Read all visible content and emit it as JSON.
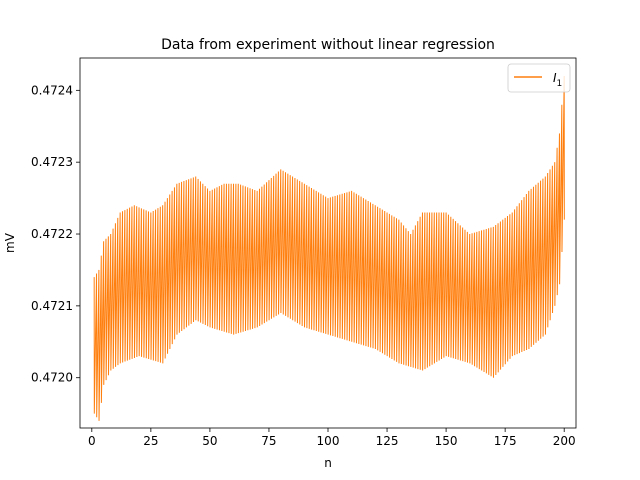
{
  "chart_data": {
    "type": "line",
    "title": "Data from experiment without linear regression",
    "xlabel": "n",
    "ylabel": "mV",
    "xlim": [
      -5,
      205
    ],
    "ylim": [
      0.47193,
      0.472445
    ],
    "x_ticks": [
      0,
      25,
      50,
      75,
      100,
      125,
      150,
      175,
      200
    ],
    "x_tick_labels": [
      "0",
      "25",
      "50",
      "75",
      "100",
      "125",
      "150",
      "175",
      "200"
    ],
    "y_ticks": [
      0.472,
      0.4721,
      0.4722,
      0.4723,
      0.4724
    ],
    "y_tick_labels": [
      "0.4720",
      "0.4721",
      "0.4722",
      "0.4723",
      "0.4724"
    ],
    "grid": false,
    "legend_position": "top-right",
    "series": [
      {
        "name": "$I_1$",
        "legend_label": "I",
        "legend_subscript": "1",
        "color": "#ff7f0e",
        "x_range": [
          1,
          200
        ],
        "upper_envelope": [
          [
            1,
            0.47214
          ],
          [
            3,
            0.47215
          ],
          [
            5,
            0.47219
          ],
          [
            8,
            0.4722
          ],
          [
            12,
            0.47223
          ],
          [
            18,
            0.47224
          ],
          [
            25,
            0.47223
          ],
          [
            30,
            0.47224
          ],
          [
            36,
            0.47227
          ],
          [
            44,
            0.47228
          ],
          [
            50,
            0.47226
          ],
          [
            56,
            0.47227
          ],
          [
            62,
            0.47227
          ],
          [
            70,
            0.47226
          ],
          [
            80,
            0.47229
          ],
          [
            90,
            0.47227
          ],
          [
            100,
            0.47225
          ],
          [
            110,
            0.47226
          ],
          [
            120,
            0.47224
          ],
          [
            130,
            0.47222
          ],
          [
            135,
            0.4722
          ],
          [
            140,
            0.47223
          ],
          [
            150,
            0.47223
          ],
          [
            160,
            0.4722
          ],
          [
            170,
            0.47221
          ],
          [
            178,
            0.47223
          ],
          [
            185,
            0.47226
          ],
          [
            192,
            0.47228
          ],
          [
            196,
            0.4723
          ],
          [
            198,
            0.47234
          ],
          [
            200,
            0.47242
          ]
        ],
        "lower_envelope": [
          [
            1,
            0.47195
          ],
          [
            3,
            0.47194
          ],
          [
            5,
            0.47199
          ],
          [
            8,
            0.47201
          ],
          [
            12,
            0.47202
          ],
          [
            20,
            0.47203
          ],
          [
            30,
            0.47202
          ],
          [
            36,
            0.47206
          ],
          [
            44,
            0.47208
          ],
          [
            50,
            0.47207
          ],
          [
            60,
            0.47206
          ],
          [
            70,
            0.47207
          ],
          [
            80,
            0.47209
          ],
          [
            90,
            0.47207
          ],
          [
            100,
            0.47206
          ],
          [
            110,
            0.47205
          ],
          [
            120,
            0.47204
          ],
          [
            130,
            0.47202
          ],
          [
            140,
            0.47201
          ],
          [
            150,
            0.47203
          ],
          [
            160,
            0.47202
          ],
          [
            170,
            0.472
          ],
          [
            178,
            0.47203
          ],
          [
            185,
            0.47204
          ],
          [
            192,
            0.47206
          ],
          [
            196,
            0.4721
          ],
          [
            198,
            0.47213
          ],
          [
            200,
            0.47222
          ]
        ]
      }
    ]
  }
}
